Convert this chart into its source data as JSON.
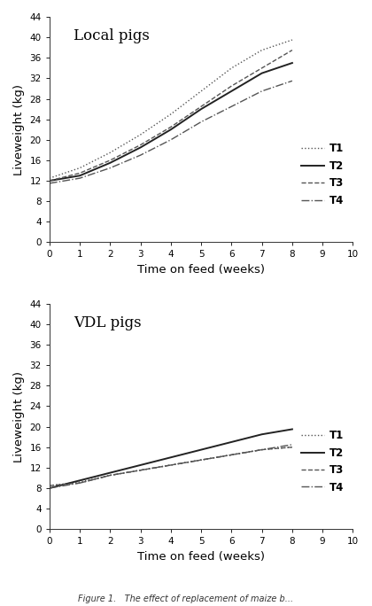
{
  "title_top": "Local pigs",
  "title_bottom": "VDL pigs",
  "xlabel": "Time on feed (weeks)",
  "ylabel": "Liveweight (kg)",
  "xlim": [
    0,
    10
  ],
  "ylim": [
    0,
    44
  ],
  "yticks": [
    0,
    4,
    8,
    12,
    16,
    20,
    24,
    28,
    32,
    36,
    40,
    44
  ],
  "xticks": [
    0,
    1,
    2,
    3,
    4,
    5,
    6,
    7,
    8,
    9,
    10
  ],
  "weeks": [
    0,
    1,
    2,
    3,
    4,
    5,
    6,
    7,
    8
  ],
  "local": {
    "T1": [
      12.5,
      14.5,
      17.5,
      21.0,
      25.0,
      29.5,
      34.0,
      37.5,
      39.5
    ],
    "T2": [
      12.0,
      13.0,
      15.5,
      18.5,
      22.0,
      26.0,
      29.5,
      33.0,
      35.0
    ],
    "T3": [
      12.0,
      13.5,
      16.0,
      19.0,
      22.5,
      26.5,
      30.5,
      34.0,
      37.5
    ],
    "T4": [
      11.5,
      12.5,
      14.5,
      17.0,
      20.0,
      23.5,
      26.5,
      29.5,
      31.5
    ]
  },
  "vdl": {
    "T1": [
      8.5,
      9.2,
      10.5,
      11.5,
      12.5,
      13.5,
      14.5,
      15.5,
      16.0
    ],
    "T2": [
      8.0,
      9.5,
      11.0,
      12.5,
      14.0,
      15.5,
      17.0,
      18.5,
      19.5
    ],
    "T3": [
      8.5,
      9.0,
      10.5,
      11.5,
      12.5,
      13.5,
      14.5,
      15.5,
      16.0
    ],
    "T4": [
      8.0,
      9.0,
      10.5,
      11.5,
      12.5,
      13.5,
      14.5,
      15.5,
      16.5
    ]
  },
  "line_styles": {
    "T1": {
      "linestyle": "dotted",
      "color": "#555555",
      "linewidth": 1.0
    },
    "T2": {
      "linestyle": "solid",
      "color": "#222222",
      "linewidth": 1.4
    },
    "T3": {
      "linestyle": "dashed",
      "color": "#555555",
      "linewidth": 1.0
    },
    "T4": {
      "linestyle": "dashdot",
      "color": "#555555",
      "linewidth": 1.0
    }
  },
  "legend_labels": [
    "T1",
    "T2",
    "T3",
    "T4"
  ],
  "background_color": "#ffffff",
  "figure_caption": "Figure 1.   The effect of replacement of maize b..."
}
